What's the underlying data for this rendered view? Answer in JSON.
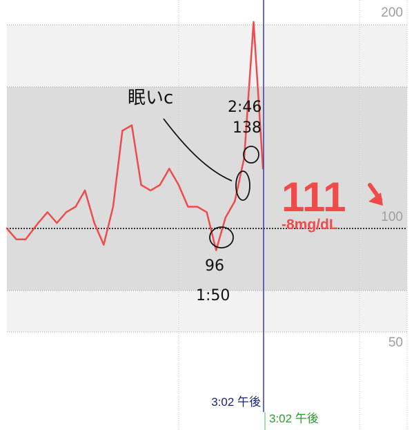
{
  "chart_data": {
    "type": "line",
    "y_ticks": [
      "200",
      "100",
      "50"
    ],
    "series": [
      {
        "color": "#ef4b4b",
        "values": [
          [
            0,
            100
          ],
          [
            1.5,
            98
          ],
          [
            3,
            98
          ],
          [
            5,
            101
          ],
          [
            6.5,
            103
          ],
          [
            8,
            101
          ],
          [
            9.5,
            103
          ],
          [
            11,
            104
          ],
          [
            12.5,
            107
          ],
          [
            14,
            101
          ],
          [
            15.5,
            97
          ],
          [
            17,
            104
          ],
          [
            18.5,
            118
          ],
          [
            20,
            119
          ],
          [
            21.5,
            108
          ],
          [
            23,
            107
          ],
          [
            24.5,
            108
          ],
          [
            26,
            111
          ],
          [
            27.5,
            108
          ],
          [
            29,
            104
          ],
          [
            30.5,
            104
          ],
          [
            32,
            103
          ],
          [
            33.5,
            96
          ],
          [
            35,
            102
          ],
          [
            36.5,
            105
          ],
          [
            38,
            113
          ],
          [
            39.5,
            138
          ],
          [
            41,
            111
          ]
        ]
      }
    ],
    "cursor_time": "3:02 午後",
    "current_time": "3:02 午後",
    "grid": true
  },
  "reading": {
    "value": "111",
    "delta": "-8mg/dL",
    "trend_icon": "arrow-down-right-icon",
    "color": "#ef4b4b"
  },
  "annotations": {
    "sleep_note": "眠いc",
    "peak_time": "2:46",
    "peak_value": "138",
    "low_value": "96",
    "low_time": "1:50"
  }
}
